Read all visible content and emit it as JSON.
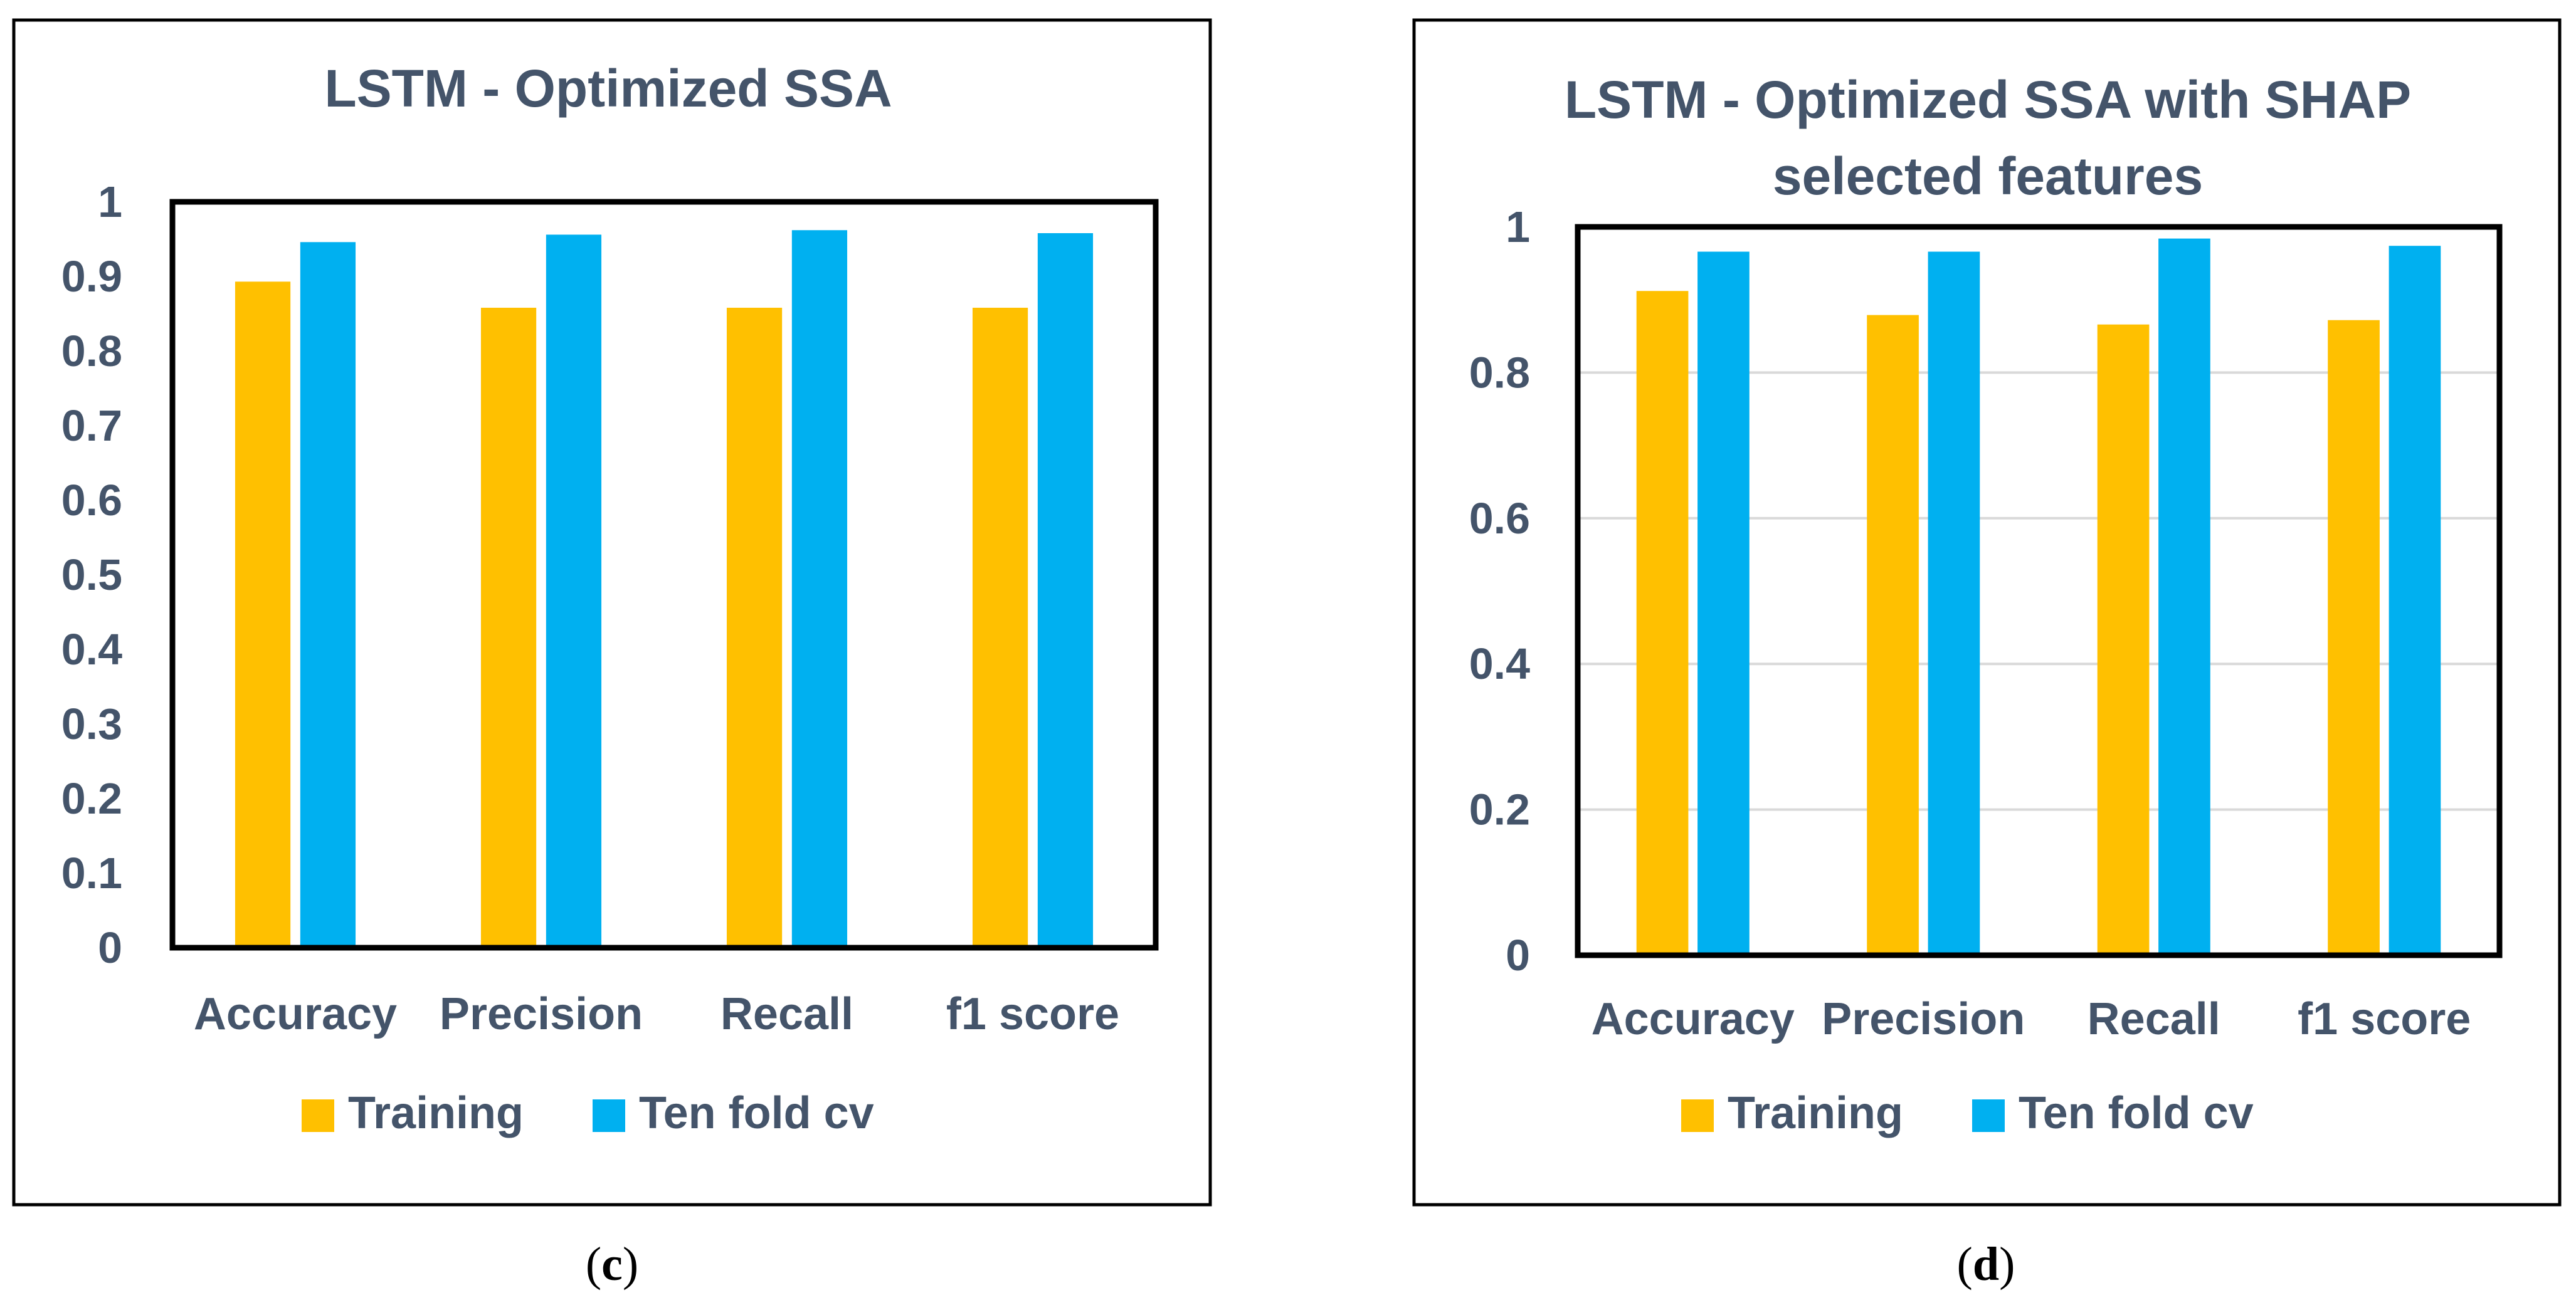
{
  "series_colors": {
    "Training": "#ffc000",
    "Ten fold cv": "#00b0f0"
  },
  "chart_data": [
    {
      "type": "bar",
      "caption": {
        "open": "(",
        "letter": "c",
        "close": ")"
      },
      "title": "LSTM - Optimized SSA",
      "title_lines": [
        "LSTM - Optimized SSA"
      ],
      "categories": [
        "Accuracy",
        "Precision",
        "Recall",
        "f1 score"
      ],
      "series": [
        {
          "name": "Training",
          "values": [
            0.893,
            0.858,
            0.858,
            0.858
          ]
        },
        {
          "name": "Ten fold cv",
          "values": [
            0.946,
            0.956,
            0.962,
            0.958
          ]
        }
      ],
      "xlabel": "",
      "ylabel": "",
      "ylim": [
        0,
        1
      ],
      "yticks": [
        0,
        0.1,
        0.2,
        0.3,
        0.4,
        0.5,
        0.6,
        0.7,
        0.8,
        0.9,
        1
      ],
      "ytick_labels": [
        "0",
        "0.1",
        "0.2",
        "0.3",
        "0.4",
        "0.5",
        "0.6",
        "0.7",
        "0.8",
        "0.9",
        "1"
      ],
      "grid": false,
      "legend": "bottom"
    },
    {
      "type": "bar",
      "caption": {
        "open": "(",
        "letter": "d",
        "close": ")"
      },
      "title": "LSTM - Optimized SSA with SHAP selected features",
      "title_lines": [
        "LSTM - Optimized SSA with SHAP",
        "selected features"
      ],
      "categories": [
        "Accuracy",
        "Precision",
        "Recall",
        "f1 score"
      ],
      "series": [
        {
          "name": "Training",
          "values": [
            0.912,
            0.879,
            0.866,
            0.872
          ]
        },
        {
          "name": "Ten fold cv",
          "values": [
            0.966,
            0.966,
            0.984,
            0.974
          ]
        }
      ],
      "xlabel": "",
      "ylabel": "",
      "ylim": [
        0,
        1
      ],
      "yticks": [
        0,
        0.2,
        0.4,
        0.6,
        0.8,
        1
      ],
      "ytick_labels": [
        "0",
        "0.2",
        "0.4",
        "0.6",
        "0.8",
        "1"
      ],
      "grid": true,
      "legend": "bottom"
    }
  ]
}
